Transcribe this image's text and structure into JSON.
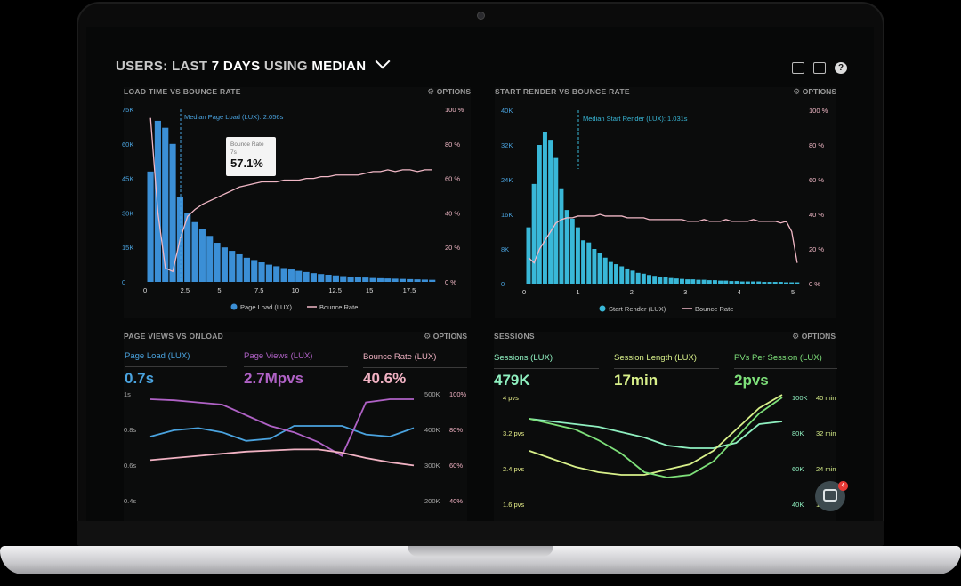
{
  "header": {
    "prefix": "USERS:",
    "range_pre": "LAST",
    "range": "7 DAYS",
    "mid": "USING",
    "agg": "MEDIAN"
  },
  "panels": {
    "load": {
      "title": "LOAD TIME VS BOUNCE RATE",
      "options": "OPTIONS"
    },
    "render": {
      "title": "START RENDER VS BOUNCE RATE",
      "options": "OPTIONS"
    },
    "pageviews": {
      "title": "PAGE VIEWS VS ONLOAD",
      "options": "OPTIONS"
    },
    "sessions": {
      "title": "SESSIONS",
      "options": "OPTIONS"
    }
  },
  "metrics": {
    "page_load": {
      "label": "Page Load (LUX)",
      "value": "0.7s",
      "color": "#4aa3df"
    },
    "page_views": {
      "label": "Page Views (LUX)",
      "value": "2.7Mpvs",
      "color": "#b062c6"
    },
    "bounce": {
      "label": "Bounce Rate (LUX)",
      "value": "40.6%",
      "color": "#f1b2c3"
    },
    "sessions": {
      "label": "Sessions (LUX)",
      "value": "479K",
      "color": "#8ff0c0"
    },
    "session_length": {
      "label": "Session Length (LUX)",
      "value": "17min",
      "color": "#d8f08a"
    },
    "pvs_per_session": {
      "label": "PVs Per Session (LUX)",
      "value": "2pvs",
      "color": "#7ee07a"
    }
  },
  "tooltip": {
    "label": "Bounce Rate",
    "sub": "7s",
    "value": "57.1%"
  },
  "intercom": {
    "badge": "4"
  },
  "colors": {
    "bar_blue": "#3b8fd6",
    "bar_cyan": "#39b8d8",
    "bounce_line": "#f1b8c6"
  },
  "chart_data": [
    {
      "type": "bar",
      "title": "LOAD TIME VS BOUNCE RATE",
      "x": [
        0,
        0.5,
        1,
        1.5,
        2,
        2.5,
        3,
        3.5,
        4,
        4.5,
        5,
        5.5,
        6,
        6.5,
        7,
        7.5,
        8,
        8.5,
        9,
        9.5,
        10,
        10.5,
        11,
        11.5,
        12,
        12.5,
        13,
        13.5,
        14,
        14.5,
        15,
        15.5,
        16,
        16.5,
        17,
        17.5,
        18,
        18.5,
        19
      ],
      "xticks": [
        "0",
        "2.5",
        "5",
        "7.5",
        "10",
        "12.5",
        "15",
        "17.5"
      ],
      "yticks_left": [
        "0",
        "15K",
        "30K",
        "45K",
        "60K",
        "75K"
      ],
      "yticks_right": [
        "0 %",
        "20 %",
        "40 %",
        "60 %",
        "80 %",
        "100 %"
      ],
      "ylim": [
        0,
        75000
      ],
      "series": [
        {
          "name": "Page Load (LUX)",
          "values": [
            48000,
            70000,
            67000,
            60000,
            37000,
            30000,
            26000,
            23000,
            20000,
            17000,
            15000,
            13500,
            12000,
            10500,
            9500,
            8500,
            7500,
            6800,
            6000,
            5400,
            4800,
            4300,
            3800,
            3400,
            3100,
            2800,
            2500,
            2300,
            2100,
            1900,
            1700,
            1600,
            1500,
            1400,
            1300,
            1200,
            1100,
            1000,
            900
          ]
        },
        {
          "name": "Bounce Rate",
          "values": [
            95,
            40,
            8,
            6,
            25,
            38,
            42,
            45,
            47,
            49,
            51,
            53,
            55,
            56,
            57,
            58,
            58,
            58,
            59,
            59,
            59,
            60,
            60,
            61,
            61,
            62,
            62,
            62,
            62,
            63,
            64,
            64,
            65,
            64,
            65,
            65,
            64,
            65,
            65
          ]
        }
      ],
      "annotation": "Median Page Load (LUX): 2.056s",
      "legend": "bottom"
    },
    {
      "type": "bar",
      "title": "START RENDER VS BOUNCE RATE",
      "x": [
        0.1,
        0.2,
        0.3,
        0.4,
        0.5,
        0.6,
        0.7,
        0.8,
        0.9,
        1,
        1.1,
        1.2,
        1.3,
        1.4,
        1.5,
        1.6,
        1.7,
        1.8,
        1.9,
        2,
        2.1,
        2.2,
        2.3,
        2.4,
        2.5,
        2.6,
        2.7,
        2.8,
        2.9,
        3,
        3.1,
        3.2,
        3.3,
        3.4,
        3.5,
        3.6,
        3.7,
        3.8,
        3.9,
        4,
        4.1,
        4.2,
        4.3,
        4.4,
        4.5,
        4.6,
        4.7,
        4.8,
        4.9,
        5
      ],
      "xticks": [
        "0",
        "1",
        "2",
        "3",
        "4",
        "5"
      ],
      "yticks_left": [
        "0",
        "8K",
        "16K",
        "24K",
        "32K",
        "40K"
      ],
      "yticks_right": [
        "0 %",
        "20 %",
        "40 %",
        "60 %",
        "80 %",
        "100 %"
      ],
      "ylim": [
        0,
        40000
      ],
      "series": [
        {
          "name": "Start Render (LUX)",
          "values": [
            13000,
            23000,
            32000,
            35000,
            33000,
            29000,
            22000,
            17000,
            15000,
            13000,
            10000,
            9500,
            8000,
            7000,
            6000,
            5000,
            4500,
            4000,
            3500,
            3000,
            2500,
            2300,
            2000,
            1800,
            1600,
            1500,
            1300,
            1200,
            1100,
            1000,
            1000,
            900,
            900,
            800,
            800,
            700,
            700,
            600,
            600,
            500,
            500,
            500,
            500,
            400,
            400,
            400,
            400,
            300,
            300,
            300
          ]
        },
        {
          "name": "Bounce Rate",
          "values": [
            15,
            12,
            20,
            25,
            30,
            35,
            37,
            38,
            38,
            39,
            39,
            39,
            39,
            40,
            39,
            39,
            39,
            39,
            38,
            38,
            38,
            38,
            37,
            37,
            37,
            37,
            37,
            37,
            37,
            36,
            36,
            36,
            37,
            36,
            36,
            36,
            37,
            36,
            36,
            36,
            36,
            37,
            36,
            36,
            36,
            36,
            35,
            36,
            30,
            12
          ]
        }
      ],
      "annotation": "Median Start Render (LUX): 1.031s",
      "legend": "bottom"
    },
    {
      "type": "line",
      "title": "PAGE VIEWS VS ONLOAD",
      "yticks_left": [
        "1s",
        "0.8s",
        "0.6s",
        "0.4s"
      ],
      "yticks_right_a": [
        "500K",
        "400K",
        "300K",
        "200K"
      ],
      "yticks_right_b": [
        "100%",
        "80%",
        "60%",
        "40%"
      ],
      "series": [
        {
          "name": "Page Load (LUX)",
          "values": [
            0.6,
            0.66,
            0.68,
            0.64,
            0.56,
            0.58,
            0.7,
            0.7,
            0.7,
            0.62,
            0.6,
            0.68
          ]
        },
        {
          "name": "Page Views (LUX)",
          "values": [
            0.95,
            0.94,
            0.92,
            0.9,
            0.8,
            0.7,
            0.64,
            0.55,
            0.42,
            0.92,
            0.95,
            0.95
          ]
        },
        {
          "name": "Bounce Rate (LUX)",
          "values": [
            0.38,
            0.4,
            0.42,
            0.44,
            0.46,
            0.47,
            0.48,
            0.48,
            0.45,
            0.4,
            0.36,
            0.33
          ]
        }
      ]
    },
    {
      "type": "line",
      "title": "SESSIONS",
      "yticks_left": [
        "4 pvs",
        "3.2 pvs",
        "2.4 pvs",
        "1.6 pvs"
      ],
      "yticks_right_a": [
        "100K",
        "80K",
        "60K",
        "40K"
      ],
      "yticks_right_b": [
        "40 min",
        "32 min",
        "24 min",
        "16 min"
      ],
      "series": [
        {
          "name": "Sessions (LUX)",
          "values": [
            3.2,
            3.1,
            3.0,
            2.9,
            2.7,
            2.5,
            2.2,
            2.1,
            2.1,
            2.3,
            3.0,
            3.1
          ]
        },
        {
          "name": "Session Length (LUX)",
          "values": [
            2.0,
            1.7,
            1.4,
            1.2,
            1.1,
            1.1,
            1.3,
            1.5,
            2.0,
            2.8,
            3.6,
            4.1
          ]
        },
        {
          "name": "PVs Per Session (LUX)",
          "values": [
            3.2,
            3.0,
            2.8,
            2.4,
            1.9,
            1.2,
            1.0,
            1.1,
            1.6,
            2.5,
            3.4,
            4.0
          ]
        }
      ]
    }
  ]
}
